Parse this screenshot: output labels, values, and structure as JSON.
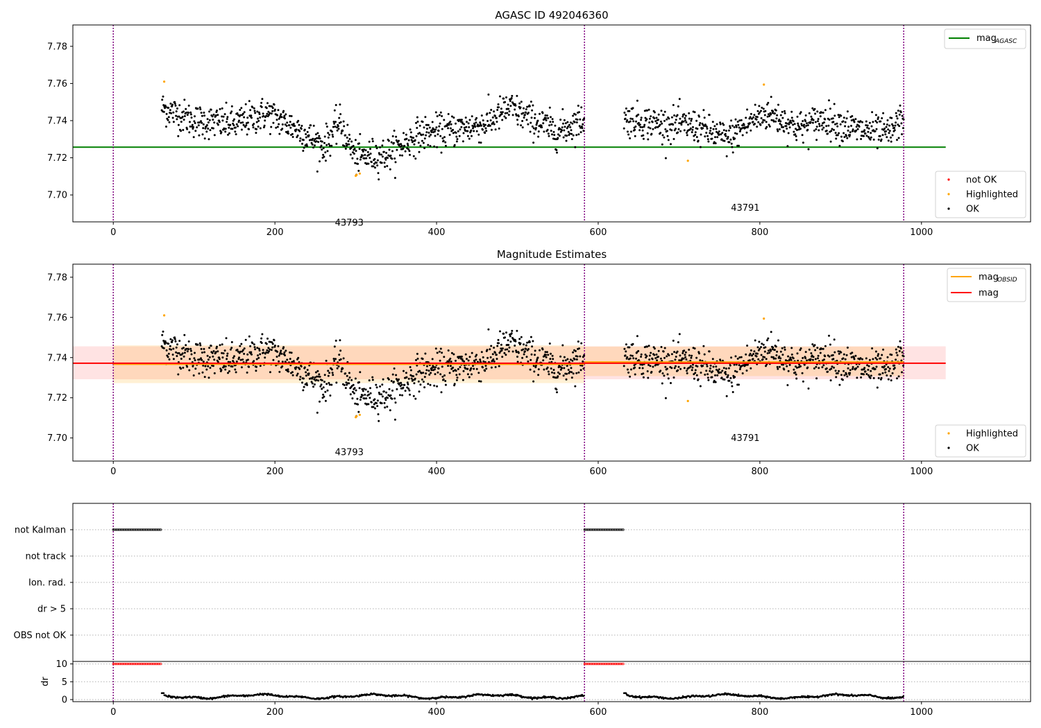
{
  "chart_data": [
    {
      "type": "scatter",
      "title": "AGASC ID 492046360",
      "xlim": [
        -50,
        1135
      ],
      "ylim": [
        7.6855,
        7.7915
      ],
      "xticks": [
        0,
        200,
        400,
        600,
        800,
        1000
      ],
      "yticks": [
        7.7,
        7.72,
        7.74,
        7.76,
        7.78
      ],
      "ytick_labels": [
        "7.70",
        "7.72",
        "7.74",
        "7.76",
        "7.78"
      ],
      "obs_boundaries": [
        0,
        583,
        978
      ],
      "obsid_labels": [
        {
          "text": "43793",
          "x": 292,
          "y": 7.6835
        },
        {
          "text": "43791",
          "x": 782,
          "y": 7.6915
        }
      ],
      "mag_agasc": 7.7257,
      "mag_agasc_label": "mag",
      "mag_agasc_sub": "AGASC",
      "legend_points": [
        "not OK",
        "Highlighted",
        "OK"
      ],
      "colors": {
        "ok": "#000000",
        "highlighted": "#ffa500",
        "not_ok": "#ff0000",
        "agasc": "#008000",
        "obs_line": "#800080"
      },
      "highlighted_points": [
        [
          63,
          7.761
        ],
        [
          300,
          7.7103
        ],
        [
          301,
          7.7108
        ],
        [
          305,
          7.7115
        ],
        [
          711,
          7.7184
        ],
        [
          805,
          7.7594
        ]
      ]
    },
    {
      "type": "scatter",
      "title": "Magnitude Estimates",
      "xlim": [
        -50,
        1135
      ],
      "ylim": [
        7.6885,
        7.7865
      ],
      "xticks": [
        0,
        200,
        400,
        600,
        800,
        1000
      ],
      "yticks": [
        7.7,
        7.72,
        7.74,
        7.76,
        7.78
      ],
      "ytick_labels": [
        "7.70",
        "7.72",
        "7.74",
        "7.76",
        "7.78"
      ],
      "obs_boundaries": [
        0,
        583,
        978
      ],
      "obsid_labels": [
        {
          "text": "43793",
          "x": 292,
          "y": 7.6915
        },
        {
          "text": "43791",
          "x": 782,
          "y": 7.6985
        }
      ],
      "mag": 7.7372,
      "mag_band": [
        7.7292,
        7.7456
      ],
      "mag_obsid": [
        {
          "x": [
            0,
            583
          ],
          "value": 7.7367,
          "band": [
            7.7273,
            7.7461
          ]
        },
        {
          "x": [
            583,
            978
          ],
          "value": 7.7378,
          "band": [
            7.7308,
            7.7455
          ]
        }
      ],
      "legend_lines": [
        {
          "label": "mag",
          "sub": "OBSID",
          "color": "#ffa500"
        },
        {
          "label": "mag",
          "sub": "",
          "color": "#ff0000"
        }
      ],
      "legend_points": [
        "Highlighted",
        "OK"
      ]
    },
    {
      "type": "scatter",
      "title": "",
      "xlim": [
        -50,
        1135
      ],
      "flag_rows": [
        "not Kalman",
        "not track",
        "Ion. rad.",
        "dr > 5",
        "OBS not OK"
      ],
      "flag_ranges": [
        {
          "row": "not Kalman",
          "x": [
            0,
            60
          ]
        },
        {
          "row": "not Kalman",
          "x": [
            583,
            632
          ]
        }
      ],
      "obs_boundaries": [
        0,
        583,
        978
      ]
    },
    {
      "type": "scatter",
      "title": "",
      "ylabel": "dr",
      "xlim": [
        -50,
        1135
      ],
      "ylim": [
        0,
        10.5
      ],
      "yticks": [
        0,
        5,
        10
      ],
      "ytick_labels": [
        "0",
        "5",
        "10"
      ],
      "xticks": [
        0,
        200,
        400,
        600,
        800,
        1000
      ],
      "xtick_labels": [
        "0",
        "200",
        "400",
        "600",
        "800",
        "1000"
      ],
      "dr_clipped": [
        {
          "x": [
            0,
            60
          ],
          "value": 10
        },
        {
          "x": [
            583,
            632
          ],
          "value": 10
        }
      ],
      "dr_ok_ranges": [
        [
          60,
          583
        ],
        [
          632,
          978
        ]
      ],
      "dr_mean": 0.9,
      "obs_boundaries": [
        0,
        583,
        978
      ]
    }
  ]
}
